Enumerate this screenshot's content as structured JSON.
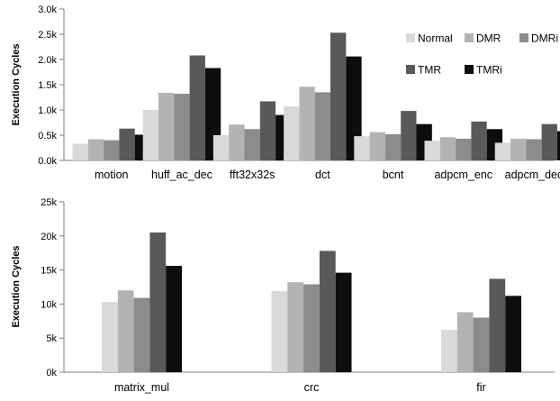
{
  "colors": {
    "Normal": "#d9d9d9",
    "DMR": "#b3b3b3",
    "DMRi": "#8c8c8c",
    "TMR": "#595959",
    "TMRi": "#0d0d0d",
    "axis": "#7f7f7f"
  },
  "chart_data": [
    {
      "type": "bar",
      "title": "",
      "xlabel": "",
      "ylabel": "Execution Cycles",
      "ylim": [
        0,
        3000
      ],
      "yticks": [
        0,
        500,
        1000,
        1500,
        2000,
        2500,
        3000
      ],
      "ytick_labels": [
        "0.0k",
        "0.5k",
        "1.0k",
        "1.5k",
        "2.0k",
        "2.5k",
        "3.0k"
      ],
      "grid": false,
      "legend": "top-right",
      "categories": [
        "motion",
        "huff_ac_dec",
        "fft32x32s",
        "dct",
        "bcnt",
        "adpcm_enc",
        "adpcm_dec"
      ],
      "series": [
        {
          "name": "Normal",
          "values": [
            330,
            1000,
            500,
            1070,
            480,
            390,
            350
          ]
        },
        {
          "name": "DMR",
          "values": [
            420,
            1340,
            710,
            1460,
            560,
            460,
            430
          ]
        },
        {
          "name": "DMRi",
          "values": [
            400,
            1320,
            620,
            1350,
            520,
            430,
            420
          ]
        },
        {
          "name": "TMR",
          "values": [
            630,
            2080,
            1170,
            2530,
            980,
            770,
            720
          ]
        },
        {
          "name": "TMRi",
          "values": [
            510,
            1830,
            900,
            2060,
            720,
            620,
            580
          ]
        }
      ]
    },
    {
      "type": "bar",
      "title": "",
      "xlabel": "",
      "ylabel": "Execution Cycles",
      "ylim": [
        0,
        25000
      ],
      "yticks": [
        0,
        5000,
        10000,
        15000,
        20000,
        25000
      ],
      "ytick_labels": [
        "0k",
        "5k",
        "10k",
        "15k",
        "20k",
        "25k"
      ],
      "grid": false,
      "categories": [
        "matrix_mul",
        "crc",
        "fir"
      ],
      "series": [
        {
          "name": "Normal",
          "values": [
            10300,
            11900,
            6200
          ]
        },
        {
          "name": "DMR",
          "values": [
            12000,
            13200,
            8800
          ]
        },
        {
          "name": "DMRi",
          "values": [
            10900,
            12900,
            8000
          ]
        },
        {
          "name": "TMR",
          "values": [
            20500,
            17800,
            13700
          ]
        },
        {
          "name": "TMRi",
          "values": [
            15600,
            14600,
            11200
          ]
        }
      ]
    }
  ]
}
